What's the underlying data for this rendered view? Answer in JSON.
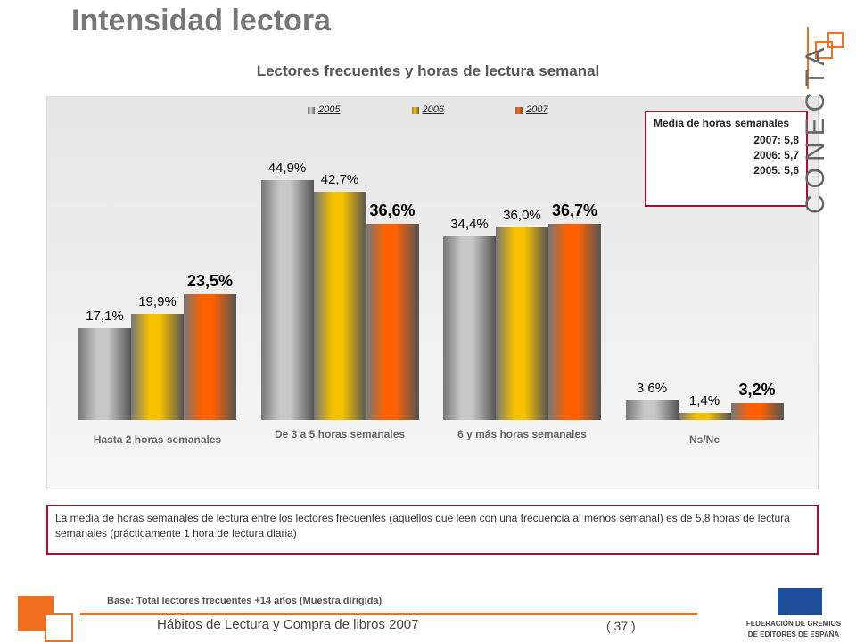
{
  "header": {
    "title": "Intensidad lectora",
    "logo": "CONECTA"
  },
  "chart_data": {
    "type": "bar",
    "title": "Lectores frecuentes y horas de lectura semanal",
    "categories": [
      "Hasta 2 horas semanales",
      "De 3 a 5 horas semanales",
      "6 y más horas semanales",
      "Ns/Nc"
    ],
    "series": [
      {
        "name": "2005",
        "color": "#c8c8c8",
        "values": [
          17.1,
          44.9,
          34.4,
          3.6
        ],
        "value_labels": [
          "17,1%",
          "44,9%",
          "34,4%",
          "3,6%"
        ]
      },
      {
        "name": "2006",
        "color": "#f5c000",
        "values": [
          19.9,
          42.7,
          36.0,
          1.4
        ],
        "value_labels": [
          "19,9%",
          "42,7%",
          "36,0%",
          "1,4%"
        ]
      },
      {
        "name": "2007",
        "color": "#ff6000",
        "values": [
          23.5,
          36.6,
          36.7,
          3.2
        ],
        "value_labels": [
          "23,5%",
          "36,6%",
          "36,7%",
          "3,2%"
        ]
      }
    ],
    "legend": "top",
    "annotations": {
      "title": "Media de horas semanales",
      "lines": [
        "2007: 5,8",
        "2006: 5,7",
        "2005: 5,6"
      ]
    }
  },
  "note": "La media de horas semanales de lectura entre los lectores frecuentes (aquellos que leen con una frecuencia al menos semanal) es de 5,8 horas de lectura semanales (prácticamente 1 hora de lectura diaria)",
  "footer": {
    "base": "Base:  Total lectores frecuentes  +14 años (Muestra  dirigida)",
    "text": "Hábitos de Lectura y Compra de libros 2007",
    "page": "( 37 )",
    "org1": "FEDERACIÓN DE GREMIOS",
    "org2": "DE EDITORES DE ESPAÑA"
  }
}
